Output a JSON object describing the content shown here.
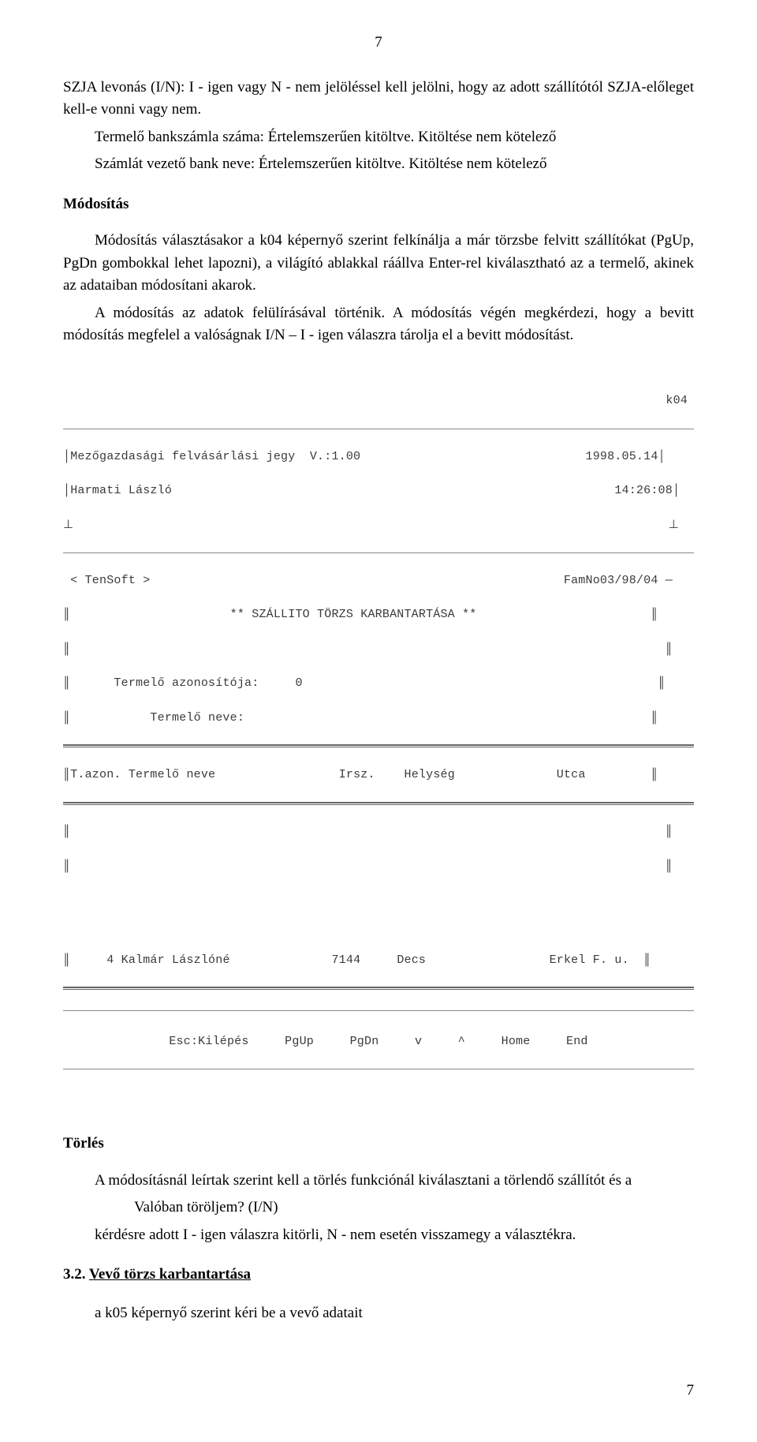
{
  "page": {
    "topNumber": "7",
    "footerNumber": "7"
  },
  "body": {
    "p1": "SZJA levonás (I/N): I - igen vagy N - nem jelöléssel kell jelölni, hogy az adott szállítótól SZJA-előleget kell-e vonni vagy nem.",
    "p2": "Termelő bankszámla száma: Értelemszerűen kitöltve. Kitöltése nem kötelező",
    "p3": "Számlát vezető bank neve: Értelemszerűen kitöltve. Kitöltése nem kötelező",
    "h1": "Módosítás",
    "p4": "Módosítás választásakor a k04 képernyő szerint felkínálja a már törzsbe felvitt szállítókat (PgUp, PgDn gombokkal lehet lapozni), a világító ablakkal ráállva Enter-rel kiválasztható az a termelő, akinek az adataiban módosítani akarok.",
    "p5": "A módosítás az adatok felülírásával történik. A módosítás végén megkérdezi, hogy a bevitt módosítás megfelel a valóságnak I/N – I - igen válaszra tárolja el a bevitt módosítást."
  },
  "screen": {
    "code": "k04",
    "title": "Mezőgazdasági felvásárlási jegy  V.:1.00",
    "date": "1998.05.14",
    "user": "Harmati László",
    "time": "14:26:08",
    "tensoft": "< TenSoft >",
    "famno": "FamNo03/98/04 —",
    "heading": "** SZÁLLITO TÖRZS KARBANTARTÁSA **",
    "fld1Label": "Termelő azonosítója:",
    "fld1Val": "0",
    "fld2Label": "Termelő neve:",
    "colAzon": "T.azon.",
    "colNev": "Termelő neve",
    "colIrsz": "Irsz.",
    "colHely": "Helység",
    "colUtca": "Utca",
    "rowId": "4",
    "rowNev": "Kalmár Lászlóné",
    "rowIrsz": "7144",
    "rowHely": "Decs",
    "rowUtca": "Erkel F. u.",
    "keys": "Esc:Kilépés   PgUp   PgDn   v   ^   Home   End"
  },
  "deletion": {
    "h": "Törlés",
    "p1a": "A módosításnál leírtak szerint kell a törlés funkciónál kiválasztani a törlendő szállítót és a",
    "p1b": "Valóban töröljem? (I/N)",
    "p2": "kérdésre adott I - igen válaszra kitörli, N - nem esetén visszamegy a választékra."
  },
  "sect32": {
    "num": "3.2. ",
    "title": "Vevő törzs karbantartása",
    "p1": "a k05 képernyő szerint kéri be a vevő adatait"
  }
}
